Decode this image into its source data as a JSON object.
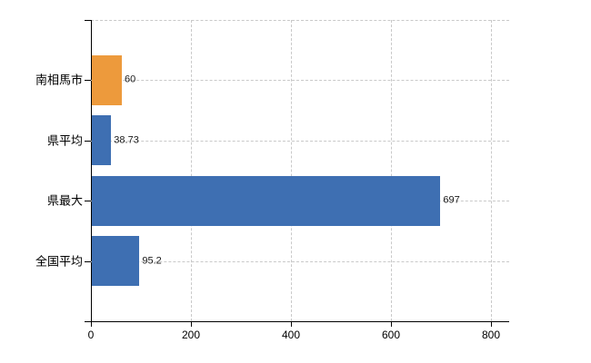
{
  "chart_data": {
    "type": "bar",
    "orientation": "horizontal",
    "title": "",
    "xlabel": "",
    "ylabel": "",
    "categories": [
      "南相馬市",
      "県平均",
      "県最大",
      "全国平均"
    ],
    "values": [
      60,
      38.73,
      697,
      95.2
    ],
    "value_labels": [
      "60",
      "38.73",
      "697",
      "95.2"
    ],
    "bar_colors": [
      "#ED9A3C",
      "#3E6FB2",
      "#3E6FB2",
      "#3E6FB2"
    ],
    "x_ticks": [
      0,
      200,
      400,
      600,
      800
    ],
    "x_tick_labels": [
      "0",
      "200",
      "400",
      "600",
      "800"
    ],
    "xlim": [
      0,
      800
    ],
    "grid": "dashed-light-gray-horizontal-and-vertical",
    "legend": "none"
  },
  "colors": {
    "highlight_bar": "#ED9A3C",
    "default_bar": "#3E6FB2",
    "axis": "#000000",
    "gridline": "#C9C9C9",
    "background": "#FFFFFF",
    "text": "#000000"
  }
}
